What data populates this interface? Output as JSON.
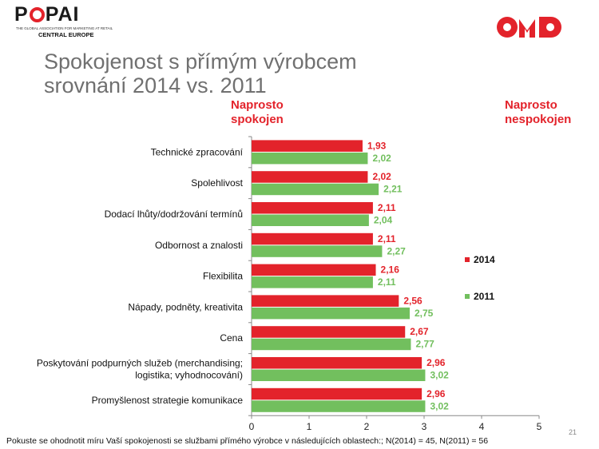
{
  "logo": {
    "name": "POPAI",
    "tagline": "THE GLOBAL ASSOCIATION FOR MARKETING AT RETAIL",
    "region": "CENTRAL EUROPE",
    "omd_name": "OMD"
  },
  "title": {
    "line1": "Spokojenost s přímým výrobcem",
    "line2": "srovnání 2014 vs. 2011"
  },
  "scale": {
    "left_line1": "Naprosto",
    "left_line2": "spokojen",
    "right_line1": "Naprosto",
    "right_line2": "nespokojen"
  },
  "colors": {
    "s2014": "#e3232b",
    "s2011": "#72bf5e",
    "title": "#707070"
  },
  "chart_data": {
    "type": "bar",
    "orientation": "horizontal",
    "categories": [
      [
        "Technické zpracování"
      ],
      [
        "Spolehlivost"
      ],
      [
        "Dodací lhůty/dodržování termínů"
      ],
      [
        "Odbornost a znalosti"
      ],
      [
        "Flexibilita"
      ],
      [
        "Nápady, podněty, kreativita"
      ],
      [
        "Cena"
      ],
      [
        "Poskytování podpurných služeb (merchandising;",
        "logistika; vyhodnocování)"
      ],
      [
        "Promyšlenost strategie komunikace"
      ]
    ],
    "series": [
      {
        "name": "2014",
        "values": [
          1.93,
          2.02,
          2.11,
          2.11,
          2.16,
          2.56,
          2.67,
          2.96,
          2.96
        ],
        "labels": [
          "1,93",
          "2,02",
          "2,11",
          "2,11",
          "2,16",
          "2,56",
          "2,67",
          "2,96",
          "2,96"
        ]
      },
      {
        "name": "2011",
        "values": [
          2.02,
          2.21,
          2.04,
          2.27,
          2.11,
          2.75,
          2.77,
          3.02,
          3.02
        ],
        "labels": [
          "2,02",
          "2,21",
          "2,04",
          "2,27",
          "2,11",
          "2,75",
          "2,77",
          "3,02",
          "3,02"
        ]
      }
    ],
    "xlim": [
      0,
      5
    ],
    "xticks": [
      "0",
      "1",
      "2",
      "3",
      "4",
      "5"
    ],
    "legend_position": "right"
  },
  "page_number": "21",
  "footnote": "Pokuste se ohodnotit míru Vaší spokojenosti se službami přímého výrobce v následujících oblastech:; N(2014) = 45, N(2011) = 56"
}
